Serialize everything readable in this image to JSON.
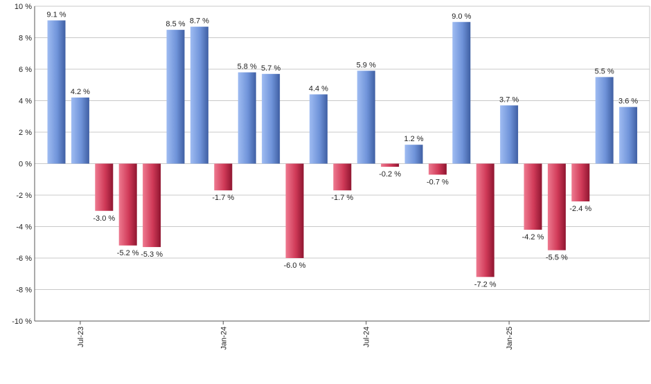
{
  "chart_data": {
    "type": "bar",
    "title": "",
    "xlabel": "",
    "ylabel": "",
    "ylim": [
      -10,
      10
    ],
    "y_ticks": [
      10,
      8,
      6,
      4,
      2,
      0,
      -2,
      -4,
      -6,
      -8,
      -10
    ],
    "y_tick_suffix": " %",
    "grid": true,
    "legend": "none",
    "x_tick_labels": [
      {
        "label": "Jul-23",
        "index": 1
      },
      {
        "label": "Jan-24",
        "index": 7
      },
      {
        "label": "Jul-24",
        "index": 13
      },
      {
        "label": "Jan-25",
        "index": 19
      }
    ],
    "values": [
      9.1,
      4.2,
      -3.0,
      -5.2,
      -5.3,
      8.5,
      8.7,
      -1.7,
      5.8,
      5.7,
      -6.0,
      4.4,
      -1.7,
      5.9,
      -0.2,
      1.2,
      -0.7,
      9.0,
      -7.2,
      3.7,
      -4.2,
      -5.5,
      -2.4,
      5.5,
      3.6
    ],
    "data_labels": [
      "9.1 %",
      "4.2 %",
      "-3.0 %",
      "-5.2 %",
      "-5.3 %",
      "8.5 %",
      "8.7 %",
      "-1.7 %",
      "5.8 %",
      "5.7 %",
      "-6.0 %",
      "4.4 %",
      "-1.7 %",
      "5.9 %",
      "-0.2 %",
      "1.2 %",
      "-0.7 %",
      "9.0 %",
      "-7.2 %",
      "3.7 %",
      "-4.2 %",
      "-5.5 %",
      "-2.4 %",
      "5.5 %",
      "3.6 %"
    ],
    "colors": {
      "positive": "#7fa3e6",
      "positive_dark": "#4a6fb8",
      "negative": "#d94a66",
      "negative_dark": "#a8203e",
      "grid": "#c8c8c8",
      "axis": "#555555"
    }
  }
}
